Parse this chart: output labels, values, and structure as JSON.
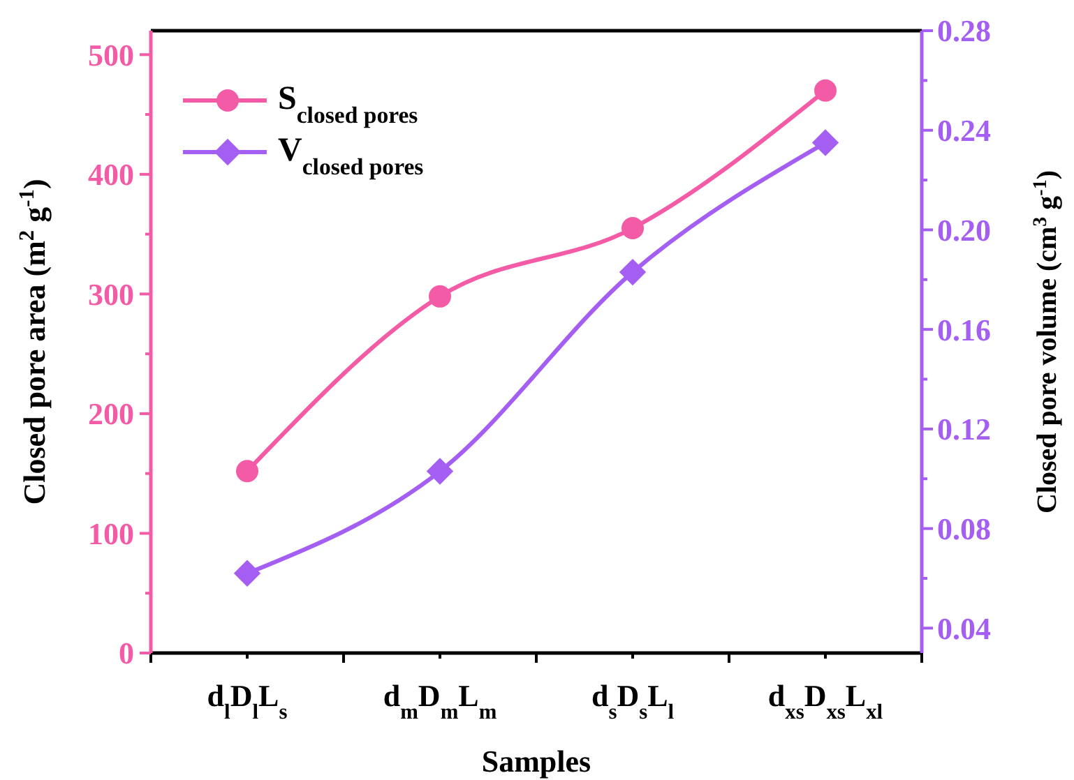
{
  "chart_data": {
    "type": "line",
    "xlabel": "Samples",
    "ylabel": "Closed pore area (m$^{2}$ g$^{-1}$)",
    "y2label": "Closed pore volume (cm$^{3}$ g$^{-1}$)",
    "categories": [
      "d$_{l}$D$_{l}$L$_{s}$",
      "d$_{m}$D$_{m}$L$_{m}$",
      "d$_{s}$D$_{s}$L$_{l}$",
      "d$_{xs}$D$_{xs}$L$_{xl}$"
    ],
    "series": [
      {
        "name": "S$_{closed pores}$",
        "color": "#f45ba6",
        "values": [
          152,
          298,
          355,
          470
        ],
        "marker": "circle"
      },
      {
        "name": "V$_{closed pores}$",
        "color": "#a45ff2",
        "values": [
          0.062,
          0.103,
          0.183,
          0.235
        ],
        "axis": "y2",
        "marker": "diamond"
      }
    ],
    "ylim": [
      0,
      520
    ],
    "yticks": [
      0,
      {
        "value": 50,
        "label": null
      },
      100,
      {
        "value": 150,
        "label": null
      },
      200,
      {
        "value": 250,
        "label": null
      },
      300,
      {
        "value": 350,
        "label": null
      },
      400,
      {
        "value": 450,
        "label": null
      },
      500
    ],
    "y2lim": [
      0.03,
      0.28
    ],
    "y2ticks": [
      0.04,
      {
        "value": 0.06,
        "label": null
      },
      0.08,
      {
        "value": 0.1,
        "label": null
      },
      0.12,
      {
        "value": 0.14,
        "label": null
      },
      0.16,
      {
        "value": 0.18,
        "label": null
      },
      {
        "value": 0.2,
        "label": "0.20"
      },
      {
        "value": 0.22,
        "label": null
      },
      0.24,
      {
        "value": 0.26,
        "label": null
      },
      0.28
    ],
    "legend": "top left",
    "grid": false,
    "line_style": "solid"
  }
}
